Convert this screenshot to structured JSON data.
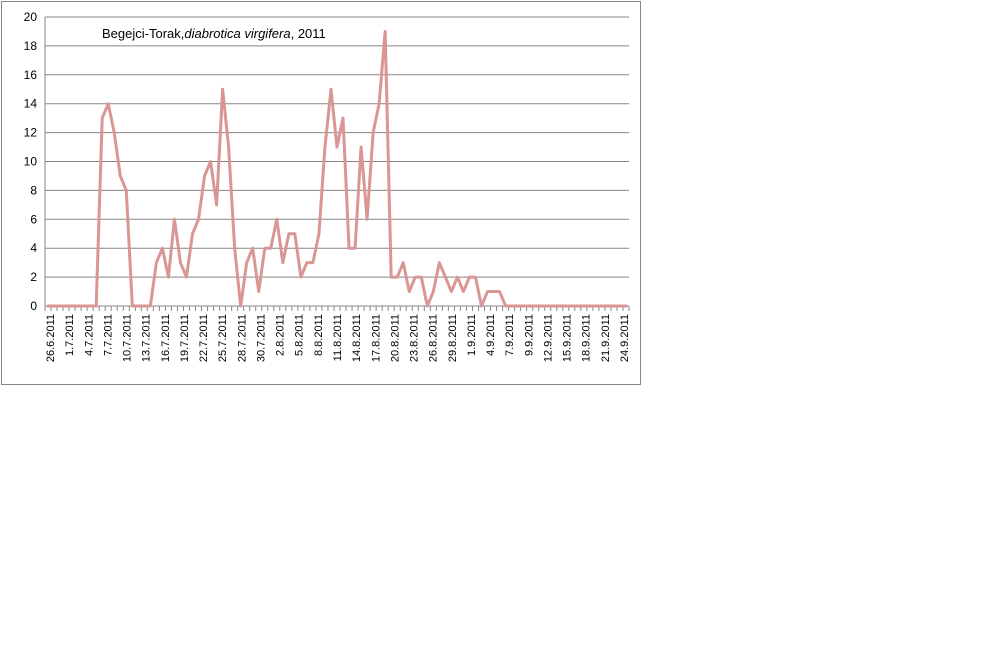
{
  "chart_data": {
    "type": "line",
    "title_parts": {
      "prefix": "Begejci-Torak,",
      "italic": "diabrotica virgifera",
      "suffix": ", 2011"
    },
    "xlabel": "",
    "ylabel": "",
    "ylim": [
      0,
      20
    ],
    "y_ticks": [
      0,
      2,
      4,
      6,
      8,
      10,
      12,
      14,
      16,
      18,
      20
    ],
    "grid": true,
    "legend": "none",
    "line_color": "#d99694",
    "x_tick_labels": [
      "26.6.2011",
      "1.7.2011",
      "4.7.2011",
      "7.7.2011",
      "10.7.2011",
      "13.7.2011",
      "16.7.2011",
      "19.7.2011",
      "22.7.2011",
      "25.7.2011",
      "28.7.2011",
      "30.7.2011",
      "2.8.2011",
      "5.8.2011",
      "8.8.2011",
      "11.8.2011",
      "14.8.2011",
      "17.8.2011",
      "20.8.2011",
      "23.8.2011",
      "26.8.2011",
      "29.8.2011",
      "1.9.2011",
      "4.9.2011",
      "7.9.2011",
      "9.9.2011",
      "12.9.2011",
      "15.9.2011",
      "18.9.2011",
      "21.9.2011",
      "24.9.2011"
    ],
    "series": [
      {
        "values": [
          0,
          0,
          0,
          0,
          0,
          0,
          0,
          0,
          0,
          13,
          14,
          12,
          9,
          8,
          0,
          0,
          0,
          0,
          3,
          4,
          2,
          6,
          3,
          2,
          5,
          6,
          9,
          10,
          7,
          15,
          11,
          4,
          0,
          3,
          4,
          1,
          4,
          4,
          6,
          3,
          5,
          5,
          2,
          3,
          3,
          5,
          11,
          15,
          11,
          13,
          4,
          4,
          11,
          6,
          12,
          14,
          19,
          2,
          2,
          3,
          1,
          2,
          2,
          0,
          1,
          3,
          2,
          1,
          2,
          1,
          2,
          2,
          0,
          1,
          1,
          1,
          0,
          0,
          0,
          0,
          0,
          0,
          0,
          0,
          0,
          0,
          0,
          0,
          0,
          0,
          0,
          0,
          0,
          0,
          0,
          0,
          0
        ]
      }
    ]
  }
}
